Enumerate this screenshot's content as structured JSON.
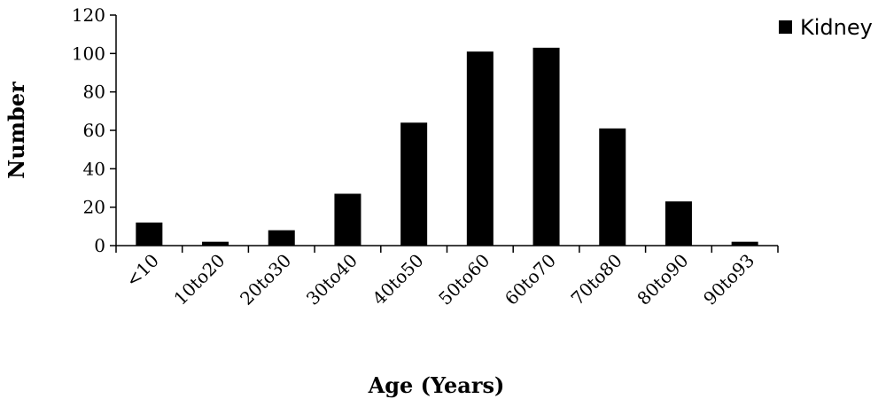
{
  "chart_data": {
    "type": "bar",
    "categories": [
      "<10",
      "10to20",
      "20to30",
      "30to40",
      "40to50",
      "50to60",
      "60to70",
      "70to80",
      "80to90",
      "90to93"
    ],
    "series": [
      {
        "name": "Kidney",
        "values": [
          12,
          2,
          8,
          27,
          64,
          101,
          103,
          61,
          23,
          2
        ],
        "color": "#000000"
      }
    ],
    "xlabel": "Age (Years)",
    "ylabel": "Number",
    "ylim": [
      0,
      120
    ],
    "yticks": [
      0,
      20,
      40,
      60,
      80,
      100,
      120
    ],
    "grid": false,
    "legend_position": "top-right"
  }
}
